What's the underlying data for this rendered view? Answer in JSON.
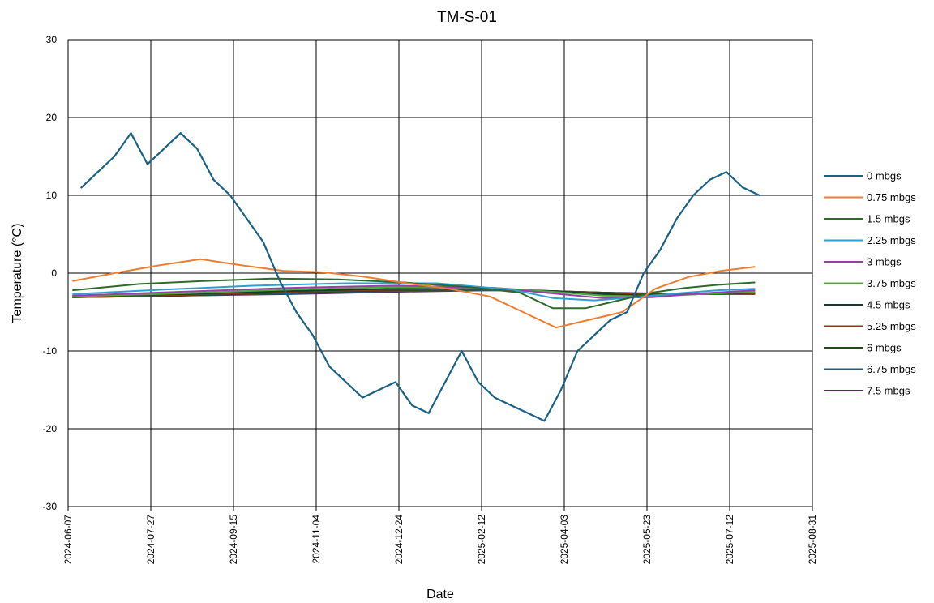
{
  "chart_data": {
    "type": "line",
    "title": "TM-S-01",
    "xlabel": "Date",
    "ylabel": "Temperature (°C)",
    "x_ticks": [
      "2024-06-07",
      "2024-07-27",
      "2024-09-15",
      "2024-11-04",
      "2024-12-24",
      "2025-02-12",
      "2025-04-03",
      "2025-05-23",
      "2025-07-12",
      "2025-08-31"
    ],
    "xlim": [
      "2024-06-07",
      "2025-08-31"
    ],
    "ylim": [
      -30,
      30
    ],
    "y_ticks": [
      -30,
      -20,
      -10,
      0,
      10,
      20,
      30
    ],
    "grid": true,
    "legend_position": "right",
    "series": [
      {
        "name": "0 mbgs",
        "color": "#1b6184",
        "x": [
          "2024-06-15",
          "2024-06-25",
          "2024-07-05",
          "2024-07-15",
          "2024-07-25",
          "2024-08-04",
          "2024-08-14",
          "2024-08-24",
          "2024-09-03",
          "2024-09-13",
          "2024-09-23",
          "2024-10-03",
          "2024-10-13",
          "2024-10-23",
          "2024-11-02",
          "2024-11-12",
          "2024-11-22",
          "2024-12-02",
          "2024-12-12",
          "2024-12-22",
          "2025-01-01",
          "2025-01-11",
          "2025-01-21",
          "2025-01-31",
          "2025-02-10",
          "2025-02-20",
          "2025-03-02",
          "2025-03-12",
          "2025-03-22",
          "2025-04-01",
          "2025-04-11",
          "2025-04-21",
          "2025-05-01",
          "2025-05-11",
          "2025-05-21",
          "2025-05-31",
          "2025-06-10",
          "2025-06-20",
          "2025-06-30",
          "2025-07-10",
          "2025-07-20",
          "2025-07-30"
        ],
        "y": [
          11,
          13,
          15,
          18,
          14,
          16,
          18,
          16,
          12,
          10,
          7,
          4,
          -1,
          -5,
          -8,
          -12,
          -14,
          -16,
          -15,
          -14,
          -17,
          -18,
          -14,
          -10,
          -14,
          -16,
          -17,
          -18,
          -19,
          -15,
          -10,
          -8,
          -6,
          -5,
          0,
          3,
          7,
          10,
          12,
          13,
          11,
          10
        ]
      },
      {
        "name": "0.75 mbgs",
        "color": "#ee7d31",
        "x": [
          "2024-06-10",
          "2024-07-05",
          "2024-08-01",
          "2024-08-26",
          "2024-09-20",
          "2024-10-15",
          "2024-11-09",
          "2024-12-04",
          "2024-12-29",
          "2025-01-23",
          "2025-02-17",
          "2025-03-09",
          "2025-03-29",
          "2025-04-18",
          "2025-05-08",
          "2025-05-28",
          "2025-06-17",
          "2025-07-07",
          "2025-07-27"
        ],
        "y": [
          -1,
          0,
          1,
          1.8,
          1,
          0.3,
          0.1,
          -0.5,
          -1.3,
          -2,
          -3,
          -5,
          -7,
          -6,
          -5,
          -2,
          -0.5,
          0.3,
          0.8
        ]
      },
      {
        "name": "1.5 mbgs",
        "color": "#2e6b2b",
        "x": [
          "2024-06-10",
          "2024-07-20",
          "2024-08-29",
          "2024-10-08",
          "2024-11-17",
          "2024-12-27",
          "2025-02-05",
          "2025-03-07",
          "2025-03-27",
          "2025-04-16",
          "2025-05-06",
          "2025-05-26",
          "2025-06-15",
          "2025-07-05",
          "2025-07-27"
        ],
        "y": [
          -2.2,
          -1.4,
          -1,
          -0.7,
          -0.8,
          -1.2,
          -1.8,
          -2.5,
          -4.5,
          -4.5,
          -3.5,
          -2.5,
          -1.9,
          -1.5,
          -1.2
        ]
      },
      {
        "name": "2.25 mbgs",
        "color": "#2d9fd3",
        "x": [
          "2024-06-10",
          "2024-08-04",
          "2024-09-28",
          "2024-11-22",
          "2025-01-16",
          "2025-03-02",
          "2025-03-27",
          "2025-04-21",
          "2025-05-16",
          "2025-06-10",
          "2025-07-05",
          "2025-07-27"
        ],
        "y": [
          -2.7,
          -2.1,
          -1.6,
          -1.3,
          -1.3,
          -2.1,
          -3.2,
          -3.5,
          -3.1,
          -2.6,
          -2.2,
          -2
        ]
      },
      {
        "name": "3 mbgs",
        "color": "#9b3fa8",
        "x": [
          "2024-06-10",
          "2024-08-14",
          "2024-10-18",
          "2024-12-22",
          "2025-02-20",
          "2025-03-27",
          "2025-04-26",
          "2025-05-26",
          "2025-06-25",
          "2025-07-27"
        ],
        "y": [
          -2.9,
          -2.4,
          -1.9,
          -1.6,
          -1.9,
          -2.6,
          -3.2,
          -3.1,
          -2.6,
          -2.2
        ]
      },
      {
        "name": "3.75 mbgs",
        "color": "#50a83d",
        "x": [
          "2024-06-10",
          "2024-08-14",
          "2024-10-18",
          "2024-12-22",
          "2025-02-20",
          "2025-03-27",
          "2025-04-26",
          "2025-05-26",
          "2025-06-25",
          "2025-07-27"
        ],
        "y": [
          -3,
          -2.6,
          -2.1,
          -1.8,
          -1.9,
          -2.4,
          -2.9,
          -3,
          -2.7,
          -2.4
        ]
      },
      {
        "name": "4.5 mbgs",
        "color": "#173a34",
        "x": [
          "2024-06-10",
          "2024-08-14",
          "2024-10-18",
          "2024-12-22",
          "2025-02-20",
          "2025-03-27",
          "2025-04-26",
          "2025-05-26",
          "2025-06-25",
          "2025-07-27"
        ],
        "y": [
          -3,
          -2.7,
          -2.3,
          -2,
          -2,
          -2.3,
          -2.7,
          -2.9,
          -2.7,
          -2.5
        ]
      },
      {
        "name": "5.25 mbgs",
        "color": "#8c3b13",
        "x": [
          "2024-06-10",
          "2024-08-14",
          "2024-10-18",
          "2024-12-22",
          "2025-02-20",
          "2025-03-27",
          "2025-04-26",
          "2025-05-26",
          "2025-06-25",
          "2025-07-27"
        ],
        "y": [
          -3.1,
          -2.8,
          -2.4,
          -2.1,
          -2.1,
          -2.3,
          -2.6,
          -2.8,
          -2.7,
          -2.6
        ]
      },
      {
        "name": "6 mbgs",
        "color": "#27471a",
        "x": [
          "2024-06-10",
          "2024-08-14",
          "2024-10-18",
          "2024-12-22",
          "2025-02-20",
          "2025-03-27",
          "2025-04-26",
          "2025-05-26",
          "2025-06-25",
          "2025-07-27"
        ],
        "y": [
          -3.1,
          -2.9,
          -2.5,
          -2.2,
          -2.1,
          -2.3,
          -2.5,
          -2.7,
          -2.7,
          -2.6
        ]
      },
      {
        "name": "6.75 mbgs",
        "color": "#1f5d80",
        "x": [
          "2024-06-10",
          "2024-08-14",
          "2024-10-18",
          "2024-12-22",
          "2025-02-20",
          "2025-03-27",
          "2025-04-26",
          "2025-05-26",
          "2025-06-25",
          "2025-07-27"
        ],
        "y": [
          -3.1,
          -2.9,
          -2.6,
          -2.3,
          -2.2,
          -2.3,
          -2.5,
          -2.7,
          -2.7,
          -2.6
        ]
      },
      {
        "name": "7.5 mbgs",
        "color": "#5b2460",
        "x": [
          "2024-06-10",
          "2024-08-14",
          "2024-10-18",
          "2024-12-22",
          "2025-02-20",
          "2025-03-27",
          "2025-04-26",
          "2025-05-26",
          "2025-06-25",
          "2025-07-27"
        ],
        "y": [
          -3.1,
          -2.9,
          -2.7,
          -2.4,
          -2.2,
          -2.3,
          -2.5,
          -2.6,
          -2.7,
          -2.7
        ]
      }
    ]
  }
}
